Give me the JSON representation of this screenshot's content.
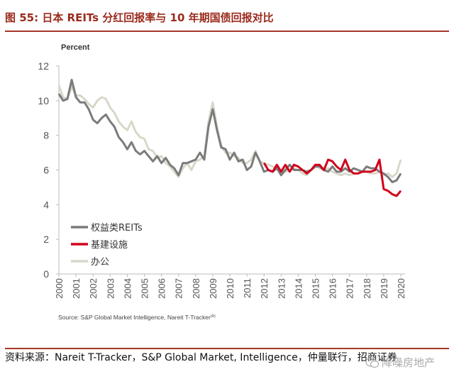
{
  "header": {
    "title": "图 55:  日本 REITs 分红回报率与 10 年期国债回报对比"
  },
  "footer": {
    "source": "资料来源：Nareit T-Tracker，S&P Global Market, Intelligence，仲量联行，招商证券"
  },
  "watermark": {
    "text": "降噪房地产",
    "icon": "wechat-icon"
  },
  "colors": {
    "title": "#9a2a1c",
    "equity": "#7b7b7b",
    "infra": "#d0021b",
    "office": "#d9d7c9"
  },
  "chart_data": {
    "type": "line",
    "ylabel": "Percent",
    "ylim": [
      0,
      12
    ],
    "yticks": [
      "0",
      "2",
      "4",
      "6",
      "8",
      "10",
      "12"
    ],
    "xlim": [
      2000,
      2020
    ],
    "xticks": [
      "2000",
      "2001",
      "2002",
      "2003",
      "2004",
      "2005",
      "2006",
      "2007",
      "2008",
      "2009",
      "2010",
      "2011",
      "2012",
      "2013",
      "2014",
      "2015",
      "2016",
      "2017",
      "2018",
      "2019",
      "2020"
    ],
    "source_note": "Source: S&P Global Market Intelligence, Nareit T-Tracker",
    "source_mark": "(R)",
    "legend_position": "bottom-left",
    "grid": false,
    "series": [
      {
        "name": "权益类REITs",
        "color": "#7b7b7b",
        "x0": 2000,
        "step": 0.25,
        "values": [
          10.4,
          10.0,
          10.1,
          11.2,
          10.2,
          9.9,
          9.9,
          9.5,
          8.9,
          8.7,
          9.0,
          9.2,
          8.8,
          8.5,
          7.9,
          7.6,
          7.2,
          7.6,
          7.1,
          6.9,
          7.1,
          6.8,
          6.5,
          6.8,
          6.4,
          6.7,
          6.3,
          6.1,
          5.7,
          6.4,
          6.4,
          6.5,
          6.6,
          7.0,
          6.6,
          8.5,
          9.5,
          8.3,
          7.3,
          7.2,
          6.6,
          7.0,
          6.5,
          6.6,
          6.0,
          6.2,
          7.0,
          6.5,
          5.9,
          6.0,
          5.9,
          6.1,
          5.7,
          6.0,
          6.3,
          6.0,
          6.0,
          6.0,
          5.9,
          6.0,
          6.2,
          6.2,
          6.0,
          5.9,
          6.2,
          5.9,
          5.9,
          6.1,
          5.9,
          6.1,
          6.0,
          5.9,
          6.2,
          6.1,
          6.1,
          5.9,
          5.8,
          5.6,
          5.3,
          5.4,
          5.8
        ]
      },
      {
        "name": "基建设施",
        "color": "#d0021b",
        "x0": 2012,
        "step": 0.25,
        "values": [
          6.4,
          6.0,
          5.9,
          6.3,
          5.9,
          6.3,
          5.9,
          6.3,
          6.2,
          6.0,
          5.8,
          6.0,
          6.3,
          6.3,
          6.0,
          6.6,
          6.5,
          6.2,
          6.0,
          6.6,
          6.0,
          5.8,
          5.8,
          5.9,
          5.9,
          5.9,
          6.0,
          6.6,
          4.9,
          4.8,
          4.6,
          4.5,
          4.8
        ]
      },
      {
        "name": "办公",
        "color": "#d9d7c9",
        "x0": 2000,
        "step": 0.25,
        "values": [
          10.9,
          10.2,
          10.1,
          10.8,
          10.3,
          10.3,
          10.1,
          9.8,
          9.6,
          10.0,
          10.2,
          10.1,
          9.6,
          9.3,
          8.8,
          8.5,
          8.3,
          8.8,
          8.2,
          7.9,
          7.8,
          7.2,
          7.1,
          6.7,
          6.8,
          6.4,
          6.2,
          5.9,
          5.6,
          6.1,
          6.4,
          6.0,
          6.5,
          6.6,
          6.8,
          8.8,
          9.9,
          8.5,
          7.4,
          7.0,
          7.0,
          6.8,
          6.7,
          6.4,
          6.4,
          6.6,
          7.1,
          6.5,
          6.4,
          6.3,
          6.2,
          6.1,
          6.0,
          5.9,
          6.0,
          6.1,
          6.0,
          5.8,
          5.7,
          6.0,
          6.3,
          6.1,
          6.0,
          6.1,
          5.9,
          5.8,
          5.7,
          5.8,
          5.7,
          5.8,
          5.8,
          5.9,
          5.9,
          5.8,
          5.8,
          5.9,
          5.7,
          5.8,
          5.6,
          5.8,
          6.6
        ]
      }
    ]
  }
}
